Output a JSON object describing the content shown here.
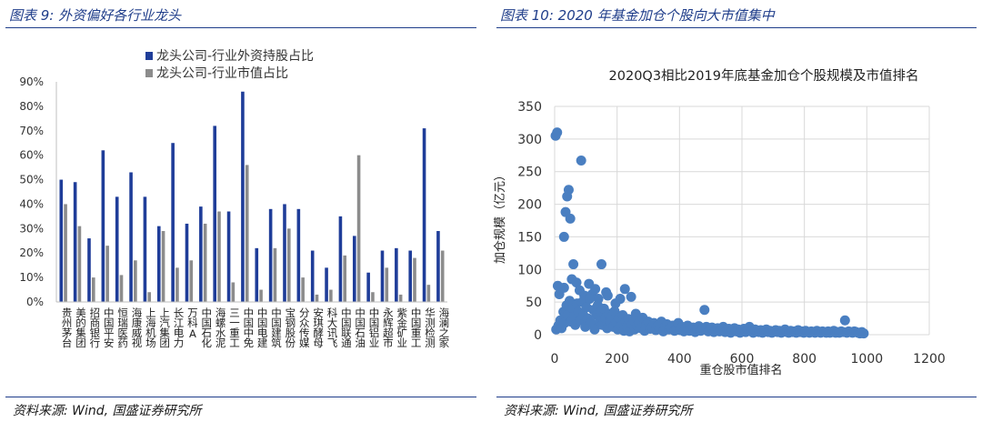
{
  "left_panel": {
    "title": "图表 9:  外资偏好各行业龙头",
    "source": "资料来源:  Wind,  国盛证券研究所"
  },
  "right_panel": {
    "title": "图表 10:  2020 年基金加仓个股向大市值集中",
    "source": "资料来源:  Wind,  国盛证券研究所"
  },
  "colors": {
    "accent": "#1f3d8a",
    "series_foreign": "#1f3d99",
    "series_market": "#8c8c8c",
    "scatter": "#4a7fc1"
  },
  "chart_data": [
    {
      "type": "bar",
      "title": "",
      "legend": "top-center",
      "categories": [
        "贵州茅台",
        "美的集团",
        "招商银行",
        "中国平安",
        "恒瑞医药",
        "海康威视",
        "上海机场",
        "上汽集团",
        "长江电力",
        "万科A",
        "中国石化",
        "海螺水泥",
        "三一重工",
        "中国中免",
        "中国电建",
        "中国建筑",
        "宝钢股份",
        "分众传媒",
        "安琪酵母",
        "科大讯飞",
        "中国联通",
        "中国石油",
        "中国铝业",
        "永辉超市",
        "紫金矿业",
        "中国重工",
        "华测检测",
        "海澜之家"
      ],
      "series": [
        {
          "name": "龙头公司-行业外资持股占比",
          "values": [
            50,
            49,
            26,
            62,
            43,
            53,
            43,
            31,
            65,
            32,
            39,
            72,
            37,
            86,
            22,
            38,
            40,
            38,
            21,
            14,
            35,
            27,
            12,
            21,
            22,
            21,
            71,
            29
          ]
        },
        {
          "name": "龙头公司-行业市值占比",
          "values": [
            40,
            31,
            10,
            23,
            11,
            17,
            4,
            29,
            14,
            17,
            32,
            37,
            8,
            56,
            5,
            22,
            30,
            10,
            3,
            5,
            19,
            60,
            4,
            14,
            3,
            18,
            7,
            21
          ]
        }
      ],
      "ylim": [
        0,
        90
      ],
      "yticks": [
        "0%",
        "10%",
        "20%",
        "30%",
        "40%",
        "50%",
        "60%",
        "70%",
        "80%",
        "90%"
      ],
      "unit": "%"
    },
    {
      "type": "scatter",
      "title": "2020Q3相比2019年底基金加仓个股规模及市值排名",
      "xlabel": "重仓股市值排名",
      "ylabel": "加仓规模（亿元）",
      "xlim": [
        0,
        1200
      ],
      "ylim": [
        0,
        350
      ],
      "xticks": [
        0,
        200,
        400,
        600,
        800,
        1000,
        1200
      ],
      "yticks": [
        0,
        50,
        100,
        150,
        200,
        250,
        300,
        350
      ],
      "grid": true,
      "points": [
        [
          3,
          305
        ],
        [
          8,
          310
        ],
        [
          85,
          267
        ],
        [
          45,
          222
        ],
        [
          40,
          212
        ],
        [
          50,
          178
        ],
        [
          35,
          188
        ],
        [
          30,
          150
        ],
        [
          60,
          108
        ],
        [
          150,
          108
        ],
        [
          10,
          75
        ],
        [
          15,
          62
        ],
        [
          30,
          72
        ],
        [
          55,
          85
        ],
        [
          70,
          80
        ],
        [
          80,
          68
        ],
        [
          95,
          60
        ],
        [
          110,
          78
        ],
        [
          120,
          62
        ],
        [
          130,
          70
        ],
        [
          140,
          55
        ],
        [
          165,
          65
        ],
        [
          170,
          60
        ],
        [
          195,
          48
        ],
        [
          210,
          55
        ],
        [
          225,
          70
        ],
        [
          245,
          58
        ],
        [
          260,
          32
        ],
        [
          480,
          38
        ],
        [
          930,
          22
        ],
        [
          5,
          8
        ],
        [
          12,
          14
        ],
        [
          18,
          22
        ],
        [
          22,
          10
        ],
        [
          28,
          35
        ],
        [
          32,
          18
        ],
        [
          38,
          45
        ],
        [
          42,
          30
        ],
        [
          48,
          52
        ],
        [
          52,
          20
        ],
        [
          58,
          40
        ],
        [
          62,
          28
        ],
        [
          66,
          15
        ],
        [
          72,
          48
        ],
        [
          76,
          35
        ],
        [
          82,
          22
        ],
        [
          88,
          50
        ],
        [
          92,
          30
        ],
        [
          98,
          12
        ],
        [
          102,
          42
        ],
        [
          106,
          25
        ],
        [
          112,
          55
        ],
        [
          116,
          18
        ],
        [
          124,
          38
        ],
        [
          128,
          8
        ],
        [
          134,
          30
        ],
        [
          138,
          45
        ],
        [
          144,
          20
        ],
        [
          148,
          35
        ],
        [
          152,
          15
        ],
        [
          158,
          40
        ],
        [
          162,
          25
        ],
        [
          168,
          10
        ],
        [
          174,
          32
        ],
        [
          178,
          20
        ],
        [
          184,
          28
        ],
        [
          188,
          12
        ],
        [
          192,
          36
        ],
        [
          198,
          18
        ],
        [
          202,
          8
        ],
        [
          206,
          26
        ],
        [
          214,
          14
        ],
        [
          218,
          30
        ],
        [
          222,
          6
        ],
        [
          228,
          20
        ],
        [
          232,
          12
        ],
        [
          236,
          24
        ],
        [
          240,
          5
        ],
        [
          248,
          16
        ],
        [
          252,
          22
        ],
        [
          256,
          8
        ],
        [
          264,
          14
        ],
        [
          270,
          18
        ],
        [
          276,
          10
        ],
        [
          282,
          26
        ],
        [
          288,
          6
        ],
        [
          294,
          15
        ],
        [
          300,
          20
        ],
        [
          306,
          9
        ],
        [
          312,
          12
        ],
        [
          318,
          18
        ],
        [
          324,
          7
        ],
        [
          330,
          14
        ],
        [
          336,
          10
        ],
        [
          342,
          20
        ],
        [
          348,
          5
        ],
        [
          354,
          12
        ],
        [
          360,
          16
        ],
        [
          366,
          8
        ],
        [
          372,
          11
        ],
        [
          378,
          14
        ],
        [
          384,
          6
        ],
        [
          390,
          9
        ],
        [
          396,
          18
        ],
        [
          402,
          7
        ],
        [
          408,
          12
        ],
        [
          414,
          5
        ],
        [
          420,
          10
        ],
        [
          426,
          14
        ],
        [
          432,
          6
        ],
        [
          438,
          8
        ],
        [
          444,
          11
        ],
        [
          450,
          4
        ],
        [
          456,
          9
        ],
        [
          462,
          13
        ],
        [
          468,
          6
        ],
        [
          474,
          10
        ],
        [
          486,
          12
        ],
        [
          492,
          5
        ],
        [
          498,
          8
        ],
        [
          504,
          11
        ],
        [
          510,
          4
        ],
        [
          516,
          7
        ],
        [
          522,
          10
        ],
        [
          528,
          5
        ],
        [
          534,
          8
        ],
        [
          540,
          12
        ],
        [
          546,
          4
        ],
        [
          552,
          6
        ],
        [
          558,
          9
        ],
        [
          564,
          3
        ],
        [
          570,
          7
        ],
        [
          576,
          10
        ],
        [
          582,
          5
        ],
        [
          588,
          8
        ],
        [
          594,
          3
        ],
        [
          600,
          6
        ],
        [
          606,
          9
        ],
        [
          612,
          4
        ],
        [
          618,
          7
        ],
        [
          624,
          12
        ],
        [
          630,
          5
        ],
        [
          636,
          3
        ],
        [
          642,
          8
        ],
        [
          648,
          6
        ],
        [
          654,
          4
        ],
        [
          660,
          7
        ],
        [
          666,
          3
        ],
        [
          672,
          5
        ],
        [
          678,
          8
        ],
        [
          684,
          4
        ],
        [
          690,
          6
        ],
        [
          696,
          3
        ],
        [
          702,
          5
        ],
        [
          708,
          7
        ],
        [
          714,
          4
        ],
        [
          720,
          6
        ],
        [
          726,
          3
        ],
        [
          732,
          5
        ],
        [
          738,
          8
        ],
        [
          744,
          4
        ],
        [
          750,
          3
        ],
        [
          756,
          6
        ],
        [
          762,
          4
        ],
        [
          768,
          5
        ],
        [
          774,
          3
        ],
        [
          780,
          7
        ],
        [
          786,
          4
        ],
        [
          792,
          5
        ],
        [
          798,
          3
        ],
        [
          804,
          6
        ],
        [
          810,
          4
        ],
        [
          816,
          3
        ],
        [
          822,
          5
        ],
        [
          828,
          4
        ],
        [
          834,
          3
        ],
        [
          840,
          6
        ],
        [
          846,
          4
        ],
        [
          852,
          3
        ],
        [
          858,
          5
        ],
        [
          864,
          4
        ],
        [
          870,
          3
        ],
        [
          876,
          5
        ],
        [
          882,
          3
        ],
        [
          888,
          4
        ],
        [
          894,
          6
        ],
        [
          900,
          3
        ],
        [
          906,
          4
        ],
        [
          912,
          3
        ],
        [
          918,
          5
        ],
        [
          924,
          4
        ],
        [
          936,
          3
        ],
        [
          942,
          5
        ],
        [
          948,
          4
        ],
        [
          954,
          3
        ],
        [
          960,
          5
        ],
        [
          966,
          4
        ],
        [
          972,
          3
        ],
        [
          978,
          2
        ],
        [
          984,
          4
        ],
        [
          990,
          2
        ]
      ]
    }
  ]
}
